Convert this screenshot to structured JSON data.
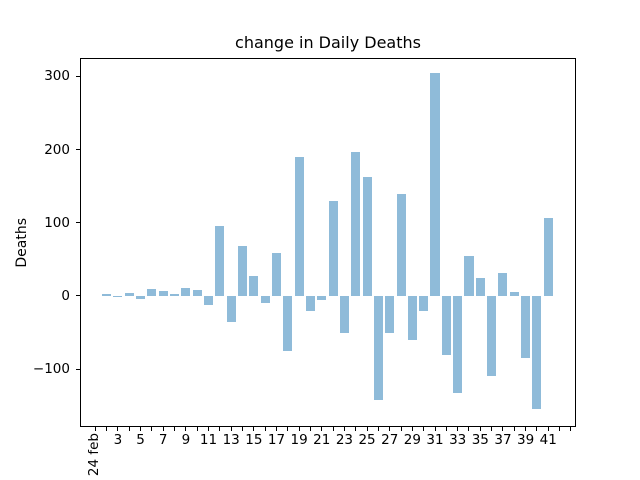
{
  "chart_data": {
    "type": "bar",
    "title": "change in Daily Deaths",
    "ylabel": "Deaths",
    "xlabel": "",
    "bar_color": "#8fbbd9",
    "background": "#ffffff",
    "grid": false,
    "legend": false,
    "bar_width": 0.8,
    "rotated_first_label": true,
    "x_start": 1,
    "values": [
      null,
      3,
      -2,
      4,
      -4,
      10,
      7,
      2,
      11,
      8,
      -13,
      95,
      -36,
      68,
      27,
      -10,
      58,
      -75,
      190,
      -21,
      -5,
      130,
      -50,
      196,
      163,
      -142,
      -50,
      139,
      -60,
      -21,
      305,
      -80,
      -133,
      54,
      25,
      -110,
      32,
      6,
      -85,
      -155,
      107
    ],
    "xtick_labels": [
      "24 feb",
      "",
      "3",
      "",
      "5",
      "",
      "7",
      "",
      "9",
      "",
      "11",
      "",
      "13",
      "",
      "15",
      "",
      "17",
      "",
      "19",
      "",
      "21",
      "",
      "23",
      "",
      "25",
      "",
      "27",
      "",
      "29",
      "",
      "31",
      "",
      "33",
      "",
      "35",
      "",
      "37",
      "",
      "39",
      "",
      "41",
      "",
      ""
    ],
    "yticks": [
      {
        "value": -100,
        "label": "−100"
      },
      {
        "value": 0,
        "label": "0"
      },
      {
        "value": 100,
        "label": "100"
      },
      {
        "value": 200,
        "label": "200"
      },
      {
        "value": 300,
        "label": "300"
      }
    ],
    "xlim": [
      -0.35,
      43.45
    ],
    "ylim": [
      -179,
      325
    ]
  }
}
